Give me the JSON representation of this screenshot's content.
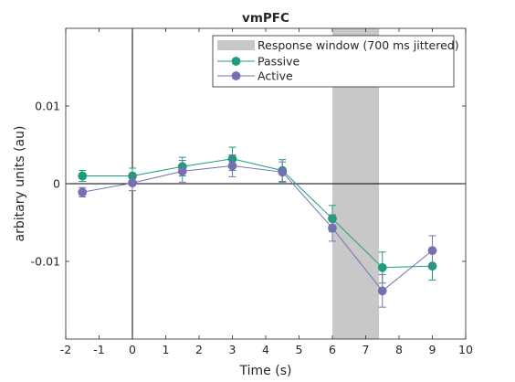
{
  "chart_data": {
    "type": "line",
    "title": "vmPFC",
    "xlabel": "Time (s)",
    "ylabel": "arbitary units (au)",
    "xlim": [
      -2,
      10
    ],
    "ylim": [
      -0.02,
      0.02
    ],
    "xticks": [
      -2,
      -1,
      0,
      1,
      2,
      3,
      4,
      5,
      6,
      7,
      8,
      9,
      10
    ],
    "xtick_labels": [
      "-2",
      "-1",
      "0",
      "1",
      "2",
      "3",
      "4",
      "5",
      "6",
      "7",
      "8",
      "9",
      "10"
    ],
    "yticks": [
      -0.01,
      0,
      0.01
    ],
    "ytick_labels": [
      "-0.01",
      "0",
      "0.01"
    ],
    "grid": false,
    "legend_position": "top-right",
    "response_window": {
      "label": "Response window (700 ms jittered)",
      "x_start": 6.0,
      "x_end": 7.4,
      "color": "#c8c8c8"
    },
    "series": [
      {
        "name": "Passive",
        "color": "#1b9e77",
        "x": [
          -1.5,
          0,
          1.5,
          3,
          4.5,
          6,
          7.5,
          9
        ],
        "y": [
          0.001,
          0.001,
          0.0022,
          0.0032,
          0.0017,
          -0.0045,
          -0.0108,
          -0.0106
        ],
        "err": [
          0.0007,
          0.001,
          0.0012,
          0.0015,
          0.0014,
          0.0017,
          0.002,
          0.0018
        ]
      },
      {
        "name": "Active",
        "color": "#7570b3",
        "x": [
          -1.5,
          0,
          1.5,
          3,
          4.5,
          6,
          7.5,
          9
        ],
        "y": [
          -0.0011,
          0.0001,
          0.0016,
          0.0023,
          0.0015,
          -0.0057,
          -0.0138,
          -0.0086
        ],
        "err": [
          0.0006,
          0.001,
          0.0014,
          0.0014,
          0.0013,
          0.0017,
          0.0021,
          0.0019
        ]
      }
    ]
  }
}
